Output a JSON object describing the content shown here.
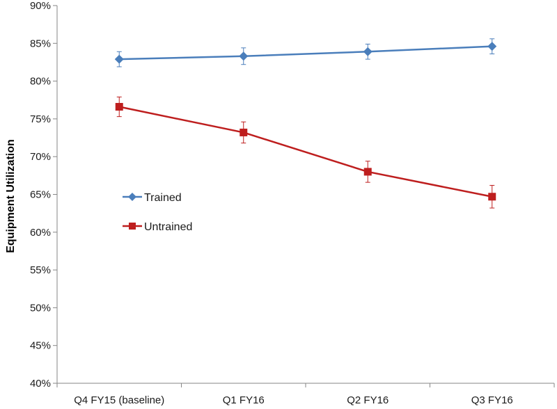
{
  "chart_data": {
    "type": "line",
    "title": "",
    "xlabel": "",
    "ylabel": "Equipment Utilization",
    "categories": [
      "Q4 FY15 (baseline)",
      "Q1 FY16",
      "Q2 FY16",
      "Q3 FY16"
    ],
    "ylim": [
      40,
      90
    ],
    "yticks": [
      40,
      45,
      50,
      55,
      60,
      65,
      70,
      75,
      80,
      85,
      90
    ],
    "ytick_labels": [
      "40%",
      "45%",
      "50%",
      "55%",
      "60%",
      "65%",
      "70%",
      "75%",
      "80%",
      "85%",
      "90%"
    ],
    "grid": false,
    "legend_position": "left, inside plot",
    "series": [
      {
        "name": "Trained",
        "marker": "diamond",
        "color": "#4a7ebb",
        "values": [
          82.9,
          83.3,
          83.9,
          84.6
        ],
        "error": [
          1.0,
          1.1,
          1.0,
          1.0
        ]
      },
      {
        "name": "Untrained",
        "marker": "square",
        "color": "#be1e1e",
        "values": [
          76.6,
          73.2,
          68.0,
          64.7
        ],
        "error": [
          1.3,
          1.4,
          1.4,
          1.5
        ]
      }
    ]
  }
}
